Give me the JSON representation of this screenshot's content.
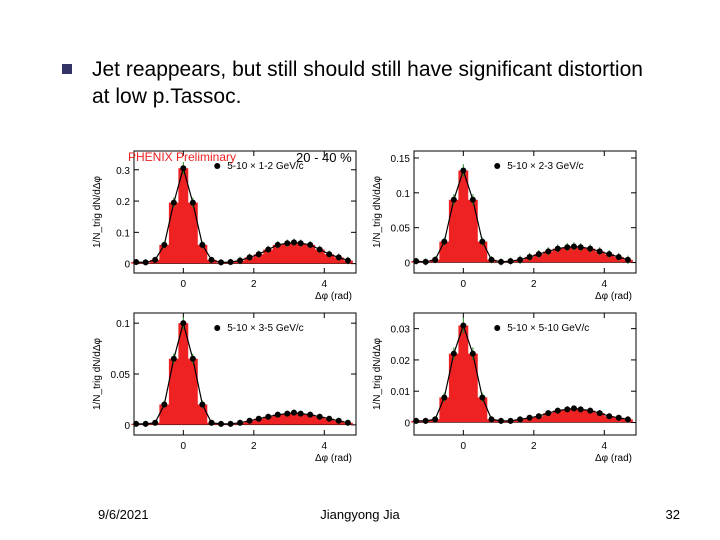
{
  "heading": "Jet reappears, but still should still have significant distortion at low p.Tassoc.",
  "prelim_text": "PHENIX Preliminary",
  "centrality_text": "20 - 40 %",
  "footer": {
    "date": "9/6/2021",
    "name": "Jiangyong Jia",
    "page": "32"
  },
  "common": {
    "ylabel": "1/N_trig dN/dΔφ",
    "xlabel": "Δφ (rad)",
    "xlim": [
      -1.4,
      4.9
    ],
    "xticks": [
      0,
      2,
      4
    ],
    "bar_fill": "#ee2222",
    "marker_color": "#000000",
    "error_color": "#228822",
    "curve_color": "#000000",
    "axis_color": "#000000",
    "font_family": "Arial",
    "tick_fontsize": 10,
    "legend_fontsize": 10,
    "ylabel_fontsize": 10,
    "xlabel_fontsize": 10,
    "marker_radius": 3,
    "bar_half_width": 0.14
  },
  "panels": [
    {
      "legend": "5-10 × 1-2 GeV/c",
      "ylim": [
        -0.03,
        0.36
      ],
      "yticks": [
        0,
        0.1,
        0.2,
        0.3
      ],
      "x": [
        -1.34,
        -1.07,
        -0.8,
        -0.54,
        -0.27,
        0.0,
        0.27,
        0.54,
        0.8,
        1.07,
        1.34,
        1.61,
        1.88,
        2.14,
        2.41,
        2.68,
        2.95,
        3.14,
        3.33,
        3.6,
        3.87,
        4.14,
        4.41,
        4.67
      ],
      "y": [
        0.005,
        0.004,
        0.012,
        0.06,
        0.195,
        0.305,
        0.195,
        0.06,
        0.012,
        0.004,
        0.005,
        0.01,
        0.02,
        0.03,
        0.045,
        0.06,
        0.065,
        0.068,
        0.065,
        0.06,
        0.045,
        0.03,
        0.02,
        0.01
      ],
      "err": [
        0.01,
        0.01,
        0.01,
        0.012,
        0.016,
        0.02,
        0.016,
        0.012,
        0.01,
        0.01,
        0.01,
        0.012,
        0.012,
        0.012,
        0.012,
        0.012,
        0.012,
        0.012,
        0.012,
        0.012,
        0.012,
        0.012,
        0.012,
        0.012
      ]
    },
    {
      "legend": "5-10 × 2-3 GeV/c",
      "ylim": [
        -0.015,
        0.16
      ],
      "yticks": [
        0,
        0.05,
        0.1,
        0.15
      ],
      "x": [
        -1.34,
        -1.07,
        -0.8,
        -0.54,
        -0.27,
        0.0,
        0.27,
        0.54,
        0.8,
        1.07,
        1.34,
        1.61,
        1.88,
        2.14,
        2.41,
        2.68,
        2.95,
        3.14,
        3.33,
        3.6,
        3.87,
        4.14,
        4.41,
        4.67
      ],
      "y": [
        0.002,
        0.001,
        0.004,
        0.03,
        0.09,
        0.132,
        0.09,
        0.03,
        0.004,
        0.001,
        0.002,
        0.004,
        0.008,
        0.012,
        0.016,
        0.02,
        0.022,
        0.023,
        0.022,
        0.02,
        0.016,
        0.012,
        0.008,
        0.004
      ],
      "err": [
        0.005,
        0.005,
        0.005,
        0.006,
        0.008,
        0.009,
        0.008,
        0.006,
        0.005,
        0.005,
        0.005,
        0.006,
        0.006,
        0.006,
        0.006,
        0.006,
        0.006,
        0.006,
        0.006,
        0.006,
        0.006,
        0.006,
        0.006,
        0.006
      ]
    },
    {
      "legend": "5-10 × 3-5 GeV/c",
      "ylim": [
        -0.01,
        0.11
      ],
      "yticks": [
        0,
        0.05,
        0.1
      ],
      "x": [
        -1.34,
        -1.07,
        -0.8,
        -0.54,
        -0.27,
        0.0,
        0.27,
        0.54,
        0.8,
        1.07,
        1.34,
        1.61,
        1.88,
        2.14,
        2.41,
        2.68,
        2.95,
        3.14,
        3.33,
        3.6,
        3.87,
        4.14,
        4.41,
        4.67
      ],
      "y": [
        0.001,
        0.001,
        0.002,
        0.02,
        0.065,
        0.1,
        0.065,
        0.02,
        0.002,
        0.001,
        0.001,
        0.002,
        0.004,
        0.006,
        0.008,
        0.01,
        0.011,
        0.012,
        0.011,
        0.01,
        0.008,
        0.006,
        0.004,
        0.002
      ],
      "err": [
        0.003,
        0.003,
        0.003,
        0.004,
        0.005,
        0.006,
        0.005,
        0.004,
        0.003,
        0.003,
        0.003,
        0.003,
        0.003,
        0.003,
        0.003,
        0.003,
        0.003,
        0.003,
        0.003,
        0.003,
        0.003,
        0.003,
        0.003,
        0.003
      ]
    },
    {
      "legend": "5-10 × 5-10 GeV/c",
      "ylim": [
        -0.004,
        0.035
      ],
      "yticks": [
        0,
        0.01,
        0.02,
        0.03
      ],
      "x": [
        -1.34,
        -1.07,
        -0.8,
        -0.54,
        -0.27,
        0.0,
        0.27,
        0.54,
        0.8,
        1.07,
        1.34,
        1.61,
        1.88,
        2.14,
        2.41,
        2.68,
        2.95,
        3.14,
        3.33,
        3.6,
        3.87,
        4.14,
        4.41,
        4.67
      ],
      "y": [
        0.0005,
        0.0005,
        0.001,
        0.008,
        0.022,
        0.031,
        0.022,
        0.008,
        0.001,
        0.0005,
        0.0005,
        0.001,
        0.0015,
        0.002,
        0.003,
        0.0038,
        0.0042,
        0.0045,
        0.0042,
        0.0038,
        0.003,
        0.002,
        0.0015,
        0.001
      ],
      "err": [
        0.001,
        0.001,
        0.001,
        0.0015,
        0.002,
        0.0025,
        0.002,
        0.0015,
        0.001,
        0.001,
        0.001,
        0.001,
        0.001,
        0.001,
        0.001,
        0.001,
        0.001,
        0.001,
        0.001,
        0.001,
        0.001,
        0.001,
        0.001,
        0.001
      ]
    }
  ]
}
